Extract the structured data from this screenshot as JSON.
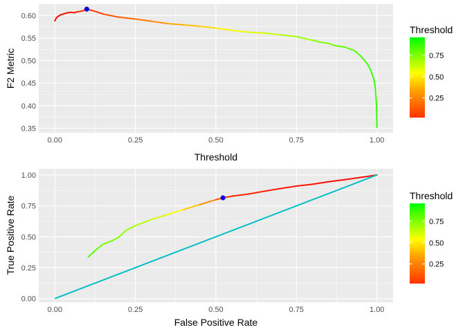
{
  "chart_data": [
    {
      "type": "line",
      "xlabel": "Threshold",
      "ylabel": "F2 Metric",
      "xlim": [
        0,
        1
      ],
      "ylim": [
        0.34,
        0.625
      ],
      "x_ticks": [
        "0.00",
        "0.25",
        "0.50",
        "0.75",
        "1.00"
      ],
      "y_ticks": [
        "0.35",
        "0.40",
        "0.45",
        "0.50",
        "0.55",
        "0.60"
      ],
      "color_by": "Threshold",
      "series": [
        {
          "points": [
            [
              0.0,
              0.588
            ],
            [
              0.005,
              0.595
            ],
            [
              0.01,
              0.598
            ],
            [
              0.02,
              0.602
            ],
            [
              0.03,
              0.604
            ],
            [
              0.04,
              0.606
            ],
            [
              0.05,
              0.607
            ],
            [
              0.06,
              0.606
            ],
            [
              0.07,
              0.608
            ],
            [
              0.08,
              0.609
            ],
            [
              0.09,
              0.611
            ],
            [
              0.099,
              0.614
            ],
            [
              0.11,
              0.612
            ],
            [
              0.125,
              0.609
            ],
            [
              0.15,
              0.603
            ],
            [
              0.2,
              0.596
            ],
            [
              0.25,
              0.592
            ],
            [
              0.3,
              0.587
            ],
            [
              0.35,
              0.582
            ],
            [
              0.4,
              0.579
            ],
            [
              0.45,
              0.576
            ],
            [
              0.5,
              0.572
            ],
            [
              0.55,
              0.567
            ],
            [
              0.6,
              0.563
            ],
            [
              0.65,
              0.561
            ],
            [
              0.7,
              0.557
            ],
            [
              0.75,
              0.553
            ],
            [
              0.8,
              0.545
            ],
            [
              0.83,
              0.54
            ],
            [
              0.85,
              0.538
            ],
            [
              0.87,
              0.533
            ],
            [
              0.9,
              0.53
            ],
            [
              0.93,
              0.522
            ],
            [
              0.95,
              0.51
            ],
            [
              0.97,
              0.493
            ],
            [
              0.98,
              0.48
            ],
            [
              0.99,
              0.46
            ],
            [
              0.995,
              0.44
            ],
            [
              0.998,
              0.41
            ],
            [
              0.999,
              0.39
            ],
            [
              1.0,
              0.352
            ]
          ]
        }
      ],
      "highlight_point": [
        0.099,
        0.614
      ]
    },
    {
      "type": "line",
      "xlabel": "False Positive Rate",
      "ylabel": "True Positive Rate",
      "xlim": [
        -0.05,
        1.05
      ],
      "ylim": [
        -0.03,
        1.05
      ],
      "x_ticks": [
        "0.00",
        "0.25",
        "0.50",
        "0.75",
        "1.00"
      ],
      "y_ticks": [
        "0.00",
        "0.25",
        "0.50",
        "0.75",
        "1.00"
      ],
      "color_by": "Threshold",
      "series": [
        {
          "points": [
            [
              0.104,
              0.337,
              0.94
            ],
            [
              0.13,
              0.4,
              0.91
            ],
            [
              0.15,
              0.44,
              0.88
            ],
            [
              0.18,
              0.47,
              0.85
            ],
            [
              0.2,
              0.5,
              0.82
            ],
            [
              0.22,
              0.55,
              0.79
            ],
            [
              0.25,
              0.59,
              0.75
            ],
            [
              0.3,
              0.64,
              0.68
            ],
            [
              0.35,
              0.68,
              0.6
            ],
            [
              0.4,
              0.72,
              0.5
            ],
            [
              0.45,
              0.76,
              0.38
            ],
            [
              0.5,
              0.8,
              0.25
            ],
            [
              0.522,
              0.815,
              0.1
            ],
            [
              0.55,
              0.828,
              0.09
            ],
            [
              0.6,
              0.845,
              0.08
            ],
            [
              0.65,
              0.868,
              0.07
            ],
            [
              0.7,
              0.89,
              0.06
            ],
            [
              0.75,
              0.91,
              0.05
            ],
            [
              0.8,
              0.925,
              0.04
            ],
            [
              0.85,
              0.945,
              0.03
            ],
            [
              0.9,
              0.962,
              0.025
            ],
            [
              0.95,
              0.98,
              0.02
            ],
            [
              1.0,
              1.0,
              0.01
            ]
          ]
        },
        {
          "points": [
            [
              0.0,
              0.0
            ],
            [
              1.0,
              1.0
            ]
          ],
          "color": "#00BFC4"
        }
      ],
      "highlight_point": [
        0.522,
        0.815
      ]
    }
  ],
  "legends": [
    {
      "title": "Threshold",
      "ticks": [
        "0.75",
        "0.50",
        "0.25"
      ]
    },
    {
      "title": "Threshold",
      "ticks": [
        "0.75",
        "0.50",
        "0.25"
      ]
    }
  ],
  "colors": {
    "panel_bg": "#EBEBEB",
    "grid": "#FFFFFF",
    "reference_line": "#00BFC4",
    "highlight_point": "#0000FF",
    "gradient": [
      "#FF0000",
      "#FF8C00",
      "#FFFF00",
      "#00FF00"
    ]
  }
}
